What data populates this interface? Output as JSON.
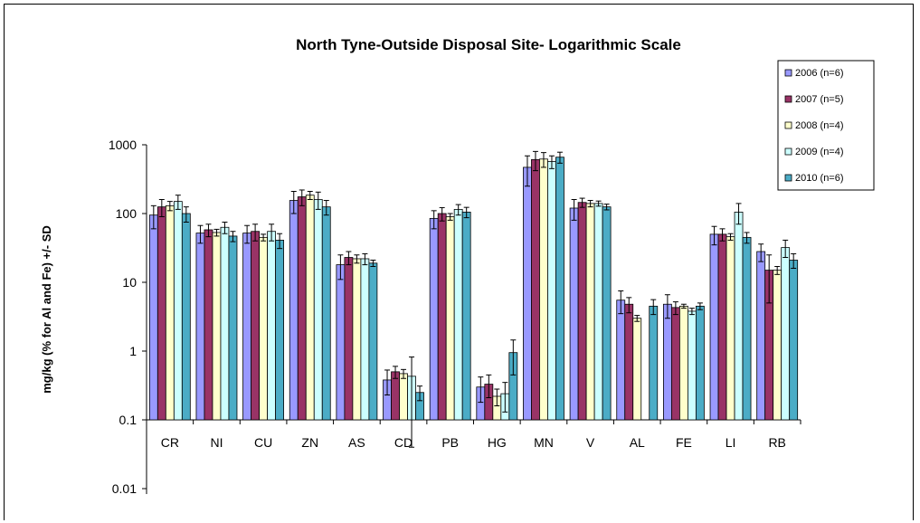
{
  "chart_data": {
    "type": "bar",
    "title": "North Tyne-Outside Disposal Site- Logarithmic Scale",
    "ylabel": "mg/kg (% for Al and Fe) +/- SD",
    "xlabel": "",
    "yscale": "log",
    "ylim": [
      0.01,
      1000
    ],
    "yticks": [
      "0.01",
      "0.1",
      "1",
      "10",
      "100",
      "1000"
    ],
    "legend_position": "right",
    "grid": false,
    "categories": [
      "CR",
      "NI",
      "CU",
      "ZN",
      "AS",
      "CD",
      "PB",
      "HG",
      "MN",
      "V",
      "AL",
      "FE",
      "LI",
      "RB"
    ],
    "series": [
      {
        "name": "2006 (n=6)",
        "color": "#9999FF",
        "values": [
          95,
          52,
          52,
          155,
          18,
          0.38,
          85,
          0.3,
          470,
          120,
          5.5,
          4.8,
          50,
          28
        ],
        "errors": [
          35,
          15,
          15,
          55,
          7,
          0.15,
          25,
          0.12,
          220,
          40,
          2.0,
          1.8,
          15,
          8
        ]
      },
      {
        "name": "2007 (n=5)",
        "color": "#993366",
        "values": [
          125,
          58,
          55,
          175,
          23,
          0.5,
          100,
          0.33,
          610,
          145,
          4.8,
          4.3,
          50,
          15
        ],
        "errors": [
          35,
          12,
          15,
          45,
          5,
          0.1,
          22,
          0.12,
          190,
          22,
          1.2,
          0.9,
          10,
          10
        ]
      },
      {
        "name": "2008 (n=4)",
        "color": "#FFFFCC",
        "values": [
          130,
          53,
          45,
          185,
          22,
          0.47,
          90,
          0.22,
          620,
          140,
          3.0,
          4.5,
          46,
          15
        ],
        "errors": [
          20,
          6,
          5,
          25,
          3,
          0.07,
          10,
          0.06,
          150,
          15,
          0.3,
          0.3,
          5,
          2
        ]
      },
      {
        "name": "2009 (n=4)",
        "color": "#CCFFFF",
        "values": [
          150,
          63,
          55,
          160,
          22,
          0.43,
          115,
          0.24,
          570,
          140,
          0,
          3.8,
          105,
          32
        ],
        "errors": [
          35,
          12,
          15,
          45,
          4,
          0.39,
          20,
          0.11,
          120,
          12,
          0,
          0.4,
          35,
          9
        ]
      },
      {
        "name": "2010 (n=6)",
        "color": "#4BACC6",
        "values": [
          100,
          47,
          41,
          125,
          19,
          0.25,
          105,
          0.95,
          660,
          125,
          4.5,
          4.5,
          45,
          21
        ],
        "errors": [
          25,
          8,
          10,
          30,
          2,
          0.06,
          18,
          0.5,
          120,
          12,
          1.1,
          0.5,
          8,
          5
        ]
      }
    ]
  }
}
